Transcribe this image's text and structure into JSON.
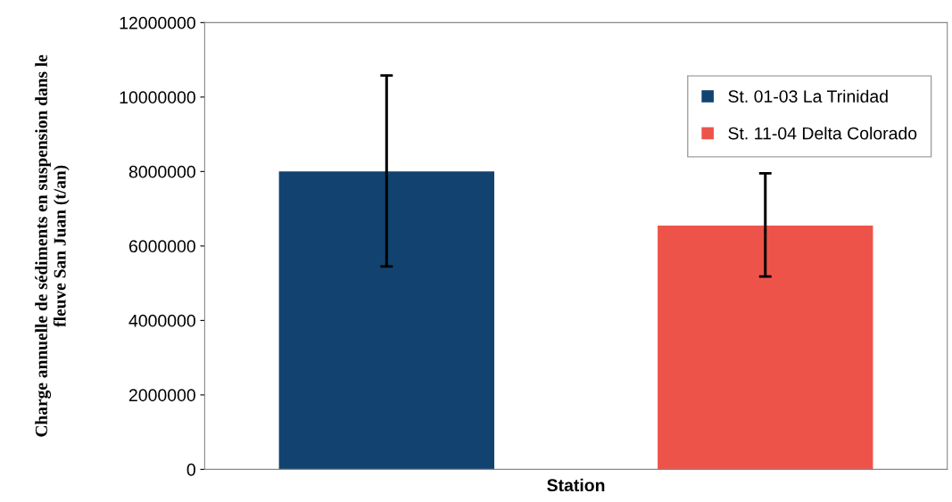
{
  "chart_data": {
    "type": "bar",
    "xlabel": "Station",
    "ylabel": "Charge annuelle de sédiments en suspension dans le\nfleuve San Juan (t/an)",
    "categories": [
      null
    ],
    "series": [
      {
        "name": "St. 01-03 La Trinidad",
        "color": "#124370",
        "values": [
          8000000
        ],
        "errors": [
          [
            5450000,
            10580000
          ]
        ]
      },
      {
        "name": "St. 11-04 Delta Colorado",
        "color": "#ee534a",
        "values": [
          6550000
        ],
        "errors": [
          [
            5180000,
            7950000
          ]
        ]
      }
    ],
    "ylim": [
      0,
      12000000
    ],
    "yticks": [
      0,
      2000000,
      4000000,
      6000000,
      8000000,
      10000000,
      12000000
    ],
    "grid": false,
    "legend": "top right"
  }
}
